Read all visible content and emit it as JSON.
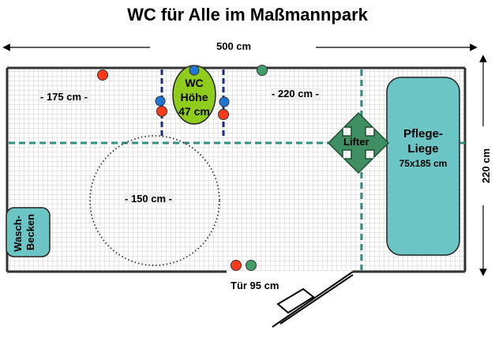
{
  "title": "WC für Alle im Maßmannpark",
  "dimensions": {
    "width": "500 cm",
    "height": "220 cm",
    "left_zone": "- 175 cm -",
    "right_zone": "- 220 cm -",
    "turn_circle": "- 150 cm -",
    "door": "Tür 95 cm"
  },
  "fixtures": {
    "wc": [
      "WC",
      "Höhe",
      "47 cm"
    ],
    "lifter": "Lifter",
    "bed": [
      "Pflege-",
      "Liege",
      "75x185 cm"
    ],
    "sink": [
      "Wasch-",
      "Becken"
    ]
  },
  "colors": {
    "wall": "#333333",
    "floor_grid": "#cfcfcf",
    "axis_line": "#2f8f80",
    "wc_fill": "#8fcc1c",
    "bed_fill": "#6cc5c5",
    "lifter_fill": "#3f8f63",
    "grab_bar": "#1a2a8a",
    "dot_red": "#ff3a1a",
    "dot_blue": "#1f76d6",
    "dot_green": "#3f9f6a"
  }
}
